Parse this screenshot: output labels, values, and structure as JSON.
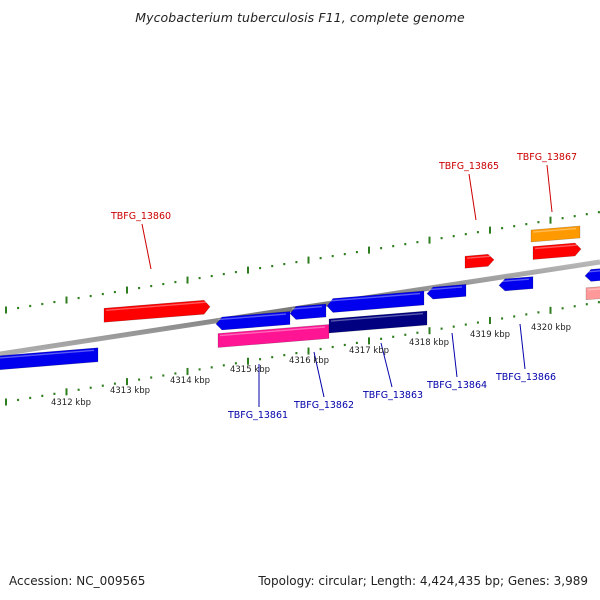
{
  "title": "Mycobacterium tuberculosis F11, complete genome",
  "footer": {
    "accession": "Accession: NC_009565",
    "topology": "Topology: circular; Length: 4,424,435 bp; Genes: 3,989"
  },
  "colors": {
    "backbone": "#8c8c8c",
    "ticks": "#2e7d1f",
    "forward_label": "#cc0000",
    "reverse_label": "#0000aa",
    "scale_label": "#222222"
  },
  "scale_labels": [
    "4312 kbp",
    "4313 kbp",
    "4314 kbp",
    "4315 kbp",
    "4316 kbp",
    "4317 kbp",
    "4318 kbp",
    "4319 kbp",
    "4320 kbp"
  ],
  "gene_labels": {
    "forward": [
      "TBFG_13860",
      "TBFG_13865",
      "TBFG_13867"
    ],
    "reverse": [
      "TBFG_13861",
      "TBFG_13862",
      "TBFG_13863",
      "TBFG_13864",
      "TBFG_13866"
    ]
  },
  "features": [
    {
      "color": "#ff0000",
      "strand": "forward"
    },
    {
      "color": "#ff0000",
      "strand": "forward"
    },
    {
      "color": "#ff9900",
      "strand": "forward"
    },
    {
      "color": "#ff0000",
      "strand": "forward"
    },
    {
      "color": "#0000ee",
      "strand": "reverse"
    },
    {
      "color": "#0000ee",
      "strand": "reverse"
    },
    {
      "color": "#0000ee",
      "strand": "reverse"
    },
    {
      "color": "#0000ee",
      "strand": "reverse"
    },
    {
      "color": "#0000ee",
      "strand": "reverse"
    },
    {
      "color": "#0000ee",
      "strand": "reverse"
    },
    {
      "color": "#0000ee",
      "strand": "reverse"
    },
    {
      "color": "#ff1493",
      "strand": "reverse"
    },
    {
      "color": "#000080",
      "strand": "reverse"
    },
    {
      "color": "#ff9999",
      "strand": "reverse"
    }
  ]
}
